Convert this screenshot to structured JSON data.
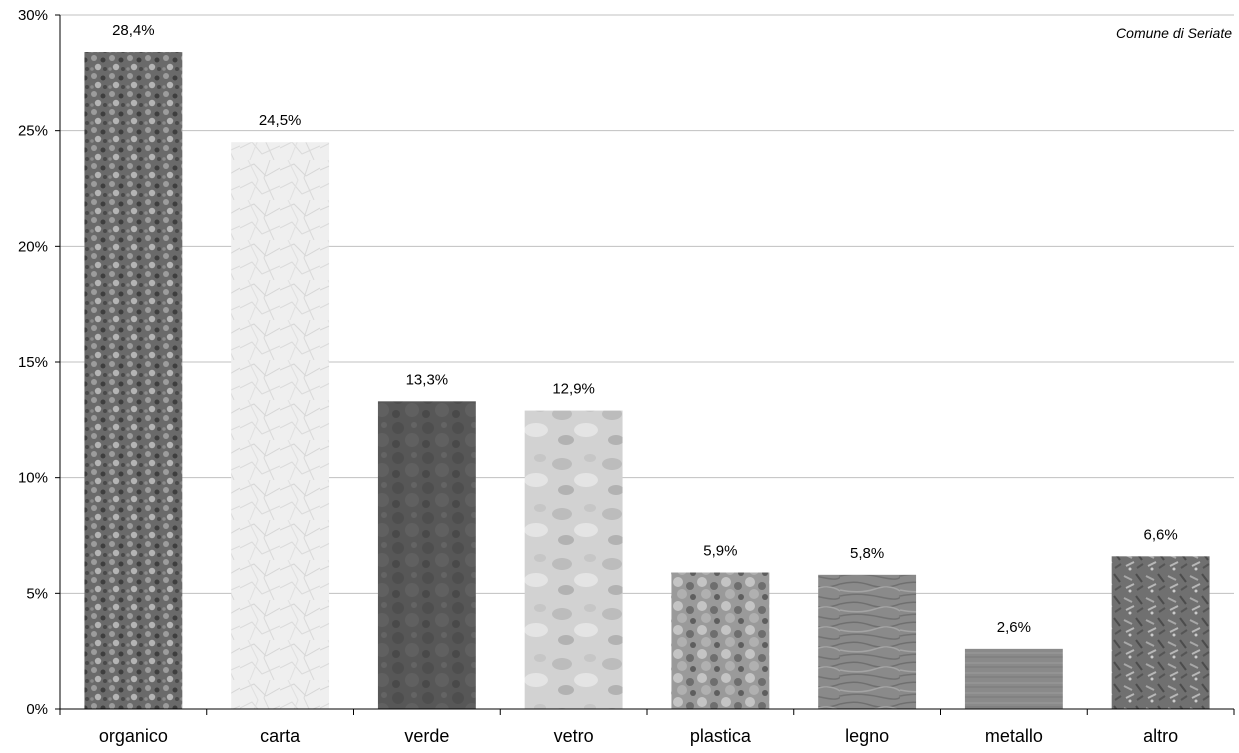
{
  "chart_data": {
    "type": "bar",
    "annotation": "Comune di Seriate",
    "categories": [
      "organico",
      "carta",
      "verde",
      "vetro",
      "plastica",
      "legno",
      "metallo",
      "altro"
    ],
    "values": [
      28.4,
      24.5,
      13.3,
      12.9,
      5.9,
      5.8,
      2.6,
      6.6
    ],
    "data_labels": [
      "28,4%",
      "24,5%",
      "13,3%",
      "12,9%",
      "5,9%",
      "5,8%",
      "2,6%",
      "6,6%"
    ],
    "ylim": [
      0,
      30
    ],
    "y_ticks": [
      0,
      5,
      10,
      15,
      20,
      25,
      30
    ],
    "y_tick_labels": [
      "0%",
      "5%",
      "10%",
      "15%",
      "20%",
      "25%",
      "30%"
    ],
    "grid": true,
    "bar_textures": [
      "organic-gravel",
      "crumpled-paper",
      "green-waste",
      "glass",
      "plastic",
      "wood-grain",
      "metal",
      "mixed-litter"
    ],
    "bar_colors": [
      "#6e6e6e",
      "#ececec",
      "#585858",
      "#cfcfcf",
      "#9a9a9a",
      "#8a8a8a",
      "#888888",
      "#757575"
    ],
    "grid_color": "#c0c0c0",
    "axis_color": "#000000"
  }
}
